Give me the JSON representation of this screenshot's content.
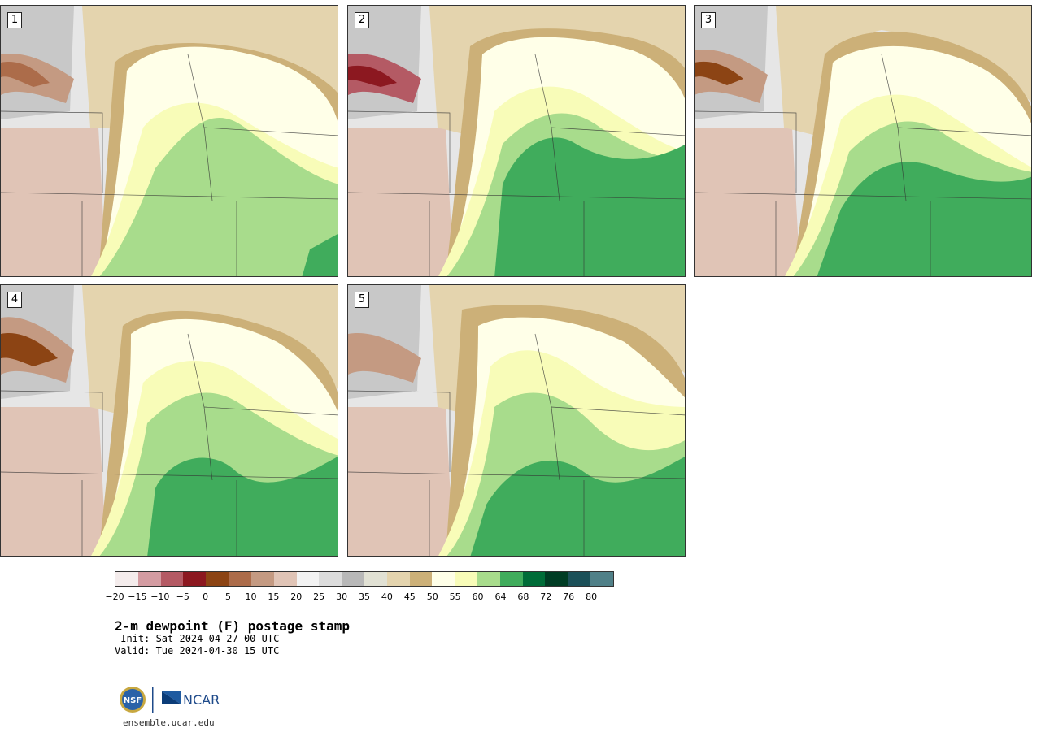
{
  "panels": [
    {
      "label": "1"
    },
    {
      "label": "2"
    },
    {
      "label": "3"
    },
    {
      "label": "4"
    },
    {
      "label": "5"
    }
  ],
  "legend": {
    "colors": [
      "#f4ecec",
      "#d49ca2",
      "#b45a64",
      "#8c1820",
      "#8c4414",
      "#ac6c4a",
      "#c49a82",
      "#e0c4b6",
      "#f2f2f2",
      "#dcdcdc",
      "#b8b8b8",
      "#e1e1d4",
      "#e4d4ae",
      "#ccb078",
      "#ffffe8",
      "#f8fcb8",
      "#a8dc8c",
      "#40ac5c",
      "#006c38",
      "#003c24",
      "#1c5058",
      "#508088"
    ],
    "ticks": [
      "−20",
      "−15",
      "−10",
      "−5",
      "0",
      "5",
      "10",
      "15",
      "20",
      "25",
      "30",
      "35",
      "40",
      "45",
      "50",
      "55",
      "60",
      "64",
      "68",
      "72",
      "76",
      "80"
    ]
  },
  "title": "2-m dewpoint (F) postage stamp",
  "init_line": " Init: Sat 2024-04-27 00 UTC",
  "valid_line": "Valid: Tue 2024-04-30 15 UTC",
  "logos": {
    "nsf": "NSF",
    "ncar": "NCAR"
  },
  "website": "ensemble.ucar.edu"
}
